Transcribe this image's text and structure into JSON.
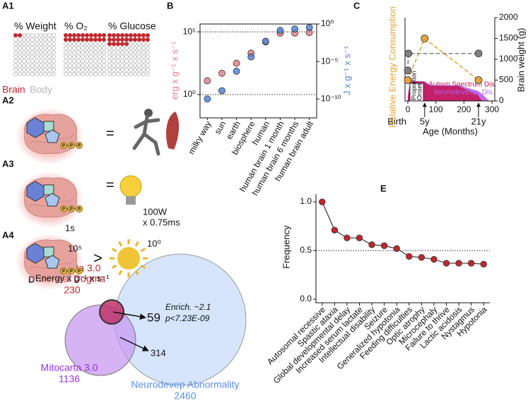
{
  "panel_a": {
    "phosphate": "P",
    "a1": {
      "label": "A1",
      "groups": [
        {
          "name": "% Weight",
          "percent": 2
        },
        {
          "name": "% O₂",
          "percent": 20
        },
        {
          "name": "% Glucose",
          "percent": 25
        }
      ],
      "legend": [
        "Brain",
        "Body"
      ],
      "colors": [
        "#c0272d",
        "#b8b8b8"
      ]
    },
    "a2": {
      "label": "A2",
      "symbol": "="
    },
    "a3": {
      "label": "A3",
      "symbol": "=",
      "time": "1s",
      "power": "100W",
      "duration": "x 0.75ms"
    },
    "a4": {
      "label": "A4",
      "brain_value": "10⁵",
      "symbol": ">",
      "sun_value": "10⁰",
      "unit": "Energy x g⁻¹ x s⁻¹"
    }
  },
  "chart_data": [
    {
      "panel_label": "B",
      "type": "scatter",
      "log_scale": true,
      "categories": [
        "milky way",
        "sun",
        "earth",
        "biosphere",
        "human",
        "human brain 1 month",
        "human brain 6 months",
        "human brain adult"
      ],
      "series": [
        {
          "name": "erg x g⁻¹ x s⁻¹",
          "color": "#e57f88",
          "values": [
            12.6,
            50,
            316,
            2000,
            15800,
            79400,
            79400,
            89000
          ]
        },
        {
          "name": "J x g⁻¹ x s⁻¹",
          "color": "#4f86dc",
          "axis": "y2",
          "values": [
            1e-10,
            1.26e-09,
            5e-07,
            4e-05,
            0.005,
            0.14,
            0.22,
            0.34
          ]
        }
      ],
      "ylim": [
        0.014,
        420000
      ],
      "yticks": [
        {
          "value": 1,
          "label": "10⁰"
        },
        {
          "value": 100000,
          "label": "10⁵"
        }
      ],
      "y2lim": [
        3e-13,
        1
      ],
      "y2ticks": [
        {
          "value": 1e-10,
          "label": "10⁻¹⁰"
        },
        {
          "value": 1e-05,
          "label": "10⁻⁵"
        },
        {
          "value": 1,
          "label": "10⁰"
        }
      ],
      "grid": true
    },
    {
      "panel_label": "C",
      "type": "line",
      "xlim": [
        -10,
        310
      ],
      "xticks": [
        0,
        100,
        200,
        300
      ],
      "xlabel": "Age (Months)",
      "ylabel": "Relative Energy Consumption",
      "ylim": [
        0,
        1
      ],
      "y2label": "Brain weight (g)",
      "y2lim": [
        0,
        2000
      ],
      "y2ticks": [
        0,
        500,
        1000,
        1500,
        2000
      ],
      "series": [
        {
          "color": "#e5a33a",
          "x": [
            0,
            60,
            252
          ],
          "values": [
            0.25,
            0.75,
            0.25
          ]
        },
        {
          "color": "#808080",
          "axis": "y2",
          "x": [
            0,
            2,
            252
          ],
          "values": [
            730,
            1140,
            1140
          ]
        }
      ],
      "area_x": [
        0,
        8,
        20,
        60,
        80,
        120,
        180,
        250,
        265,
        290
      ],
      "area_ylim": [
        0,
        1
      ],
      "areas": [
        {
          "name": "Neurodevelop. Dis.",
          "color": "#b55ee6",
          "values": [
            0.3,
            1.0,
            1.0,
            1.0,
            0.8,
            0.8,
            0.8,
            0.5,
            0.35,
            0
          ]
        },
        {
          "name": "Autism Spectrum Dis.",
          "color": "#c2185b",
          "values": [
            0.2,
            0.9,
            1.0,
            0.95,
            0.75,
            0.75,
            0.75,
            0.3,
            0,
            0
          ]
        }
      ],
      "inset_label": [
        "Proportion",
        "Onset"
      ],
      "annotations": [
        {
          "x": 0,
          "text": "Birth",
          "arrow": false
        },
        {
          "x": 60,
          "text": "5y",
          "arrow": true
        },
        {
          "x": 252,
          "text": "21y",
          "arrow": true
        }
      ]
    },
    {
      "panel_label": "E",
      "type": "line",
      "categories": [
        "Autosomal recessive",
        "Spastic ataxia",
        "Global developmental delay",
        "Increased serum lactate",
        "Intellectual disability",
        "Seizure",
        "Generalized hypotonia",
        "Feeding difficulties",
        "Optic atrophy",
        "Microcephaly",
        "Failure to thrive",
        "Lactic acidosis",
        "Nystagmus",
        "Hypotonia"
      ],
      "values": [
        1.0,
        0.71,
        0.63,
        0.63,
        0.56,
        0.55,
        0.52,
        0.44,
        0.43,
        0.41,
        0.37,
        0.37,
        0.37,
        0.36
      ],
      "color": "#c0272d",
      "line_color": "#333333",
      "ylabel": "Frequency",
      "ylim": [
        0,
        1.08
      ],
      "yticks": [
        {
          "value": 0,
          "label": "0.0"
        },
        {
          "value": 0.5,
          "label": "0.5"
        },
        {
          "value": 1,
          "label": "1.0"
        }
      ],
      "reference_line": 0.5
    }
  ],
  "panel_d": {
    "label": "D",
    "sets": [
      {
        "lines": [
          "Mitocarta 3.0",
          "Central Dogma"
        ],
        "count": 230,
        "color": "#c0272d"
      },
      {
        "lines": [
          "Mitocarta 3.0"
        ],
        "count": 1136,
        "color": "#9b30e0"
      },
      {
        "lines": [
          "Neurodevep Abnormality"
        ],
        "count": 2460,
        "color": "#5b8fe6"
      }
    ],
    "overlaps": [
      59,
      314
    ],
    "enrichment": "Enrich. ~2.1",
    "pvalue": "p<7.23E-09"
  }
}
